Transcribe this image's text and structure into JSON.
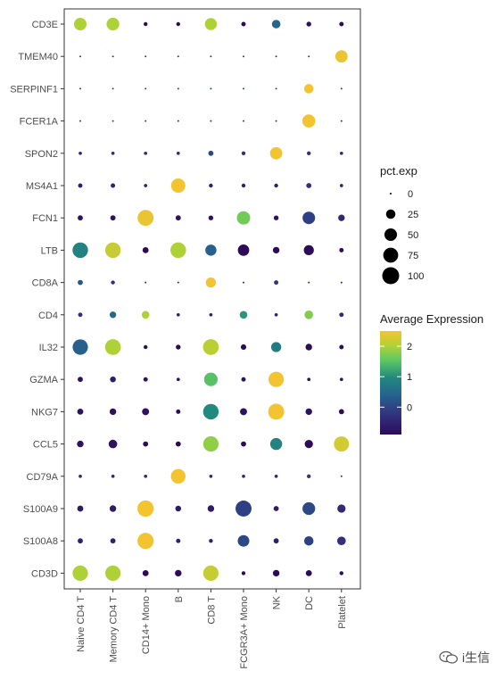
{
  "chart_data": {
    "type": "scatter",
    "x_categories": [
      "Naive CD4 T",
      "Memory CD4 T",
      "CD14+ Mono",
      "B",
      "CD8 T",
      "FCGR3A+ Mono",
      "NK",
      "DC",
      "Platelet"
    ],
    "y_categories": [
      "CD3E",
      "TMEM40",
      "SERPINF1",
      "FCER1A",
      "SPON2",
      "MS4A1",
      "FCN1",
      "LTB",
      "CD8A",
      "CD4",
      "IL32",
      "GZMA",
      "NKG7",
      "CCL5",
      "CD79A",
      "S100A9",
      "S100A8",
      "CD3D"
    ],
    "points": [
      {
        "gene": "CD3E",
        "pct": [
          50,
          52,
          2,
          2,
          45,
          3,
          20,
          4,
          3
        ],
        "avg": [
          1.9,
          1.9,
          -1.0,
          -1.0,
          1.9,
          -1.0,
          0.3,
          -0.8,
          -0.9
        ]
      },
      {
        "gene": "TMEM40",
        "pct": [
          0,
          0,
          0,
          0,
          0,
          0,
          0,
          0,
          48
        ],
        "avg": [
          -0.3,
          -0.3,
          -0.3,
          -0.3,
          -0.3,
          -0.3,
          -0.3,
          -0.3,
          2.4
        ]
      },
      {
        "gene": "SERPINF1",
        "pct": [
          0,
          0,
          0,
          0,
          0,
          0,
          0,
          25,
          0
        ],
        "avg": [
          -0.2,
          -0.2,
          -0.2,
          -0.2,
          -0.2,
          -0.2,
          -0.2,
          2.5,
          -0.2
        ]
      },
      {
        "gene": "FCER1A",
        "pct": [
          0,
          0,
          0,
          0,
          0,
          0,
          0,
          55,
          0
        ],
        "avg": [
          -0.2,
          -0.2,
          -0.2,
          -0.2,
          -0.2,
          -0.2,
          -0.2,
          2.5,
          -0.2
        ]
      },
      {
        "gene": "SPON2",
        "pct": [
          1,
          1,
          1,
          1,
          5,
          2,
          48,
          2,
          1
        ],
        "avg": [
          -0.5,
          -0.5,
          -0.5,
          -0.5,
          -0.1,
          -0.4,
          2.5,
          -0.4,
          -0.5
        ]
      },
      {
        "gene": "MS4A1",
        "pct": [
          3,
          3,
          1,
          68,
          2,
          2,
          2,
          5,
          1
        ],
        "avg": [
          -0.6,
          -0.6,
          -0.6,
          2.5,
          -0.6,
          -0.6,
          -0.6,
          -0.4,
          -0.6
        ]
      },
      {
        "gene": "FCN1",
        "pct": [
          5,
          5,
          88,
          5,
          4,
          58,
          4,
          50,
          10
        ],
        "avg": [
          -0.8,
          -0.8,
          2.4,
          -0.8,
          -0.8,
          1.5,
          -0.8,
          -0.2,
          -0.5
        ]
      },
      {
        "gene": "LTB",
        "pct": [
          82,
          82,
          8,
          83,
          38,
          40,
          10,
          30,
          3
        ],
        "avg": [
          0.7,
          2.1,
          -1.1,
          1.9,
          0.2,
          -1.2,
          -1.2,
          -1.2,
          -1.0
        ]
      },
      {
        "gene": "CD8A",
        "pct": [
          5,
          2,
          0,
          0,
          30,
          0,
          3,
          0,
          0
        ],
        "avg": [
          0.1,
          -0.4,
          -0.5,
          -0.5,
          2.5,
          -0.5,
          -0.3,
          -0.5,
          -0.5
        ]
      },
      {
        "gene": "CD4",
        "pct": [
          3,
          10,
          15,
          1,
          1,
          15,
          1,
          20,
          3
        ],
        "avg": [
          -0.4,
          0.3,
          1.9,
          -0.6,
          -0.6,
          0.9,
          -0.6,
          1.6,
          -0.5
        ]
      },
      {
        "gene": "IL32",
        "pct": [
          80,
          85,
          2,
          4,
          85,
          6,
          30,
          10,
          3
        ],
        "avg": [
          0.2,
          1.9,
          -1.2,
          -1.2,
          2.0,
          -1.2,
          0.6,
          -1.1,
          -1.2
        ]
      },
      {
        "gene": "GZMA",
        "pct": [
          5,
          7,
          3,
          1,
          60,
          3,
          80,
          1,
          1
        ],
        "avg": [
          -0.8,
          -0.7,
          -0.8,
          -0.8,
          1.3,
          -0.8,
          2.5,
          -0.8,
          -0.8
        ]
      },
      {
        "gene": "NKG7",
        "pct": [
          8,
          10,
          12,
          3,
          82,
          12,
          88,
          10,
          5
        ],
        "avg": [
          -0.8,
          -0.8,
          -0.8,
          -1.0,
          0.8,
          -0.8,
          2.5,
          -0.8,
          -0.9
        ]
      },
      {
        "gene": "CCL5",
        "pct": [
          10,
          20,
          5,
          5,
          80,
          5,
          45,
          18,
          78
        ],
        "avg": [
          -0.8,
          -0.8,
          -0.9,
          -0.9,
          1.7,
          -0.9,
          0.7,
          -1.3,
          2.2
        ]
      },
      {
        "gene": "CD79A",
        "pct": [
          1,
          1,
          1,
          72,
          1,
          1,
          1,
          2,
          0
        ],
        "avg": [
          -0.5,
          -0.5,
          -0.5,
          2.5,
          -0.5,
          -0.5,
          -0.5,
          -0.3,
          -0.5
        ]
      },
      {
        "gene": "S100A9",
        "pct": [
          8,
          10,
          92,
          7,
          10,
          88,
          5,
          52,
          18
        ],
        "avg": [
          -0.7,
          -0.7,
          2.5,
          -0.7,
          -0.7,
          -0.2,
          -0.7,
          -0.1,
          -0.5
        ]
      },
      {
        "gene": "S100A8",
        "pct": [
          5,
          5,
          90,
          3,
          2,
          42,
          5,
          25,
          20
        ],
        "avg": [
          -0.6,
          -0.6,
          2.5,
          -0.6,
          -0.6,
          -0.1,
          -0.6,
          -0.2,
          -0.4
        ]
      },
      {
        "gene": "CD3D",
        "pct": [
          80,
          80,
          8,
          10,
          80,
          2,
          10,
          8,
          2
        ],
        "avg": [
          1.9,
          1.9,
          -1.0,
          -1.0,
          2.1,
          -1.0,
          -0.9,
          -1.0,
          -1.1
        ]
      }
    ],
    "size_legend": {
      "title": "pct.exp",
      "values": [
        0,
        25,
        50,
        75,
        100
      ]
    },
    "color_legend": {
      "title": "Average Expression",
      "ticks": [
        2,
        1,
        0
      ],
      "min": -0.9,
      "max": 2.5
    },
    "colors": {
      "low": "#440154",
      "mid": "#21918c",
      "high": "#fde725",
      "scale": [
        "#2d0b59",
        "#31357f",
        "#26628e",
        "#22897f",
        "#5ec962",
        "#b3d135",
        "#f4c430"
      ]
    },
    "grid": false,
    "legend_placement": "right"
  },
  "watermark": {
    "text": "i生信",
    "icon": "wechat-icon"
  }
}
